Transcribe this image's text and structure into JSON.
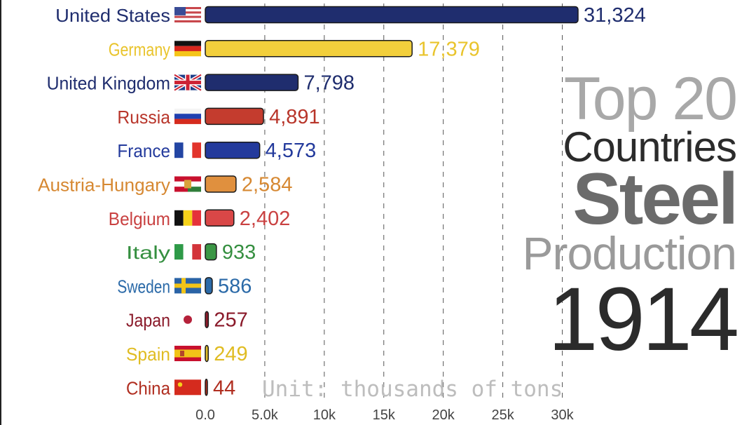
{
  "chart_data": {
    "type": "bar",
    "orientation": "horizontal",
    "categories": [
      "United States",
      "Germany",
      "United Kingdom",
      "Russia",
      "France",
      "Austria-Hungary",
      "Belgium",
      "Italy",
      "Sweden",
      "Japan",
      "Spain",
      "China"
    ],
    "values": [
      31324,
      17379,
      7798,
      4891,
      4573,
      2584,
      2402,
      933,
      586,
      257,
      249,
      44
    ],
    "value_labels": [
      "31,324",
      "17,379",
      "7,798",
      "4,891",
      "4,573",
      "2,584",
      "2,402",
      "933",
      "586",
      "257",
      "249",
      "44"
    ],
    "colors": [
      "#1f2d6e",
      "#f2cf3c",
      "#1f2d6e",
      "#c43c2e",
      "#233a9c",
      "#e0903e",
      "#d94747",
      "#3b9645",
      "#2b6aa8",
      "#8e1c2c",
      "#e3c02a",
      "#b93221"
    ],
    "label_colors": [
      "#1f2d6e",
      "#e9c42c",
      "#1f2d6e",
      "#b8352a",
      "#233a9c",
      "#d68832",
      "#c94141",
      "#358f40",
      "#2b6aa8",
      "#8a1a2a",
      "#e0bc22",
      "#b02e20"
    ],
    "flags": [
      "us-flag-icon",
      "germany-flag-icon",
      "uk-flag-icon",
      "russia-flag-icon",
      "france-flag-icon",
      "austria-hungary-flag-icon",
      "belgium-flag-icon",
      "italy-flag-icon",
      "sweden-flag-icon",
      "japan-flag-icon",
      "spain-flag-icon",
      "china-flag-icon"
    ],
    "xticks": [
      0,
      5000,
      10000,
      15000,
      20000,
      25000,
      30000
    ],
    "xtick_labels": [
      "0.0",
      "5.0k",
      "10k",
      "15k",
      "20k",
      "25k",
      "30k"
    ],
    "xlim": [
      0,
      31324
    ],
    "grid": true,
    "annotation": "Unit: thousands of tons"
  },
  "title": {
    "line1": "Top 20",
    "line2": "Countries",
    "line3": "Steel",
    "line4": "Production",
    "year": "1914"
  }
}
